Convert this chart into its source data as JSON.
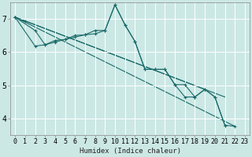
{
  "xlabel": "Humidex (Indice chaleur)",
  "bg_color": "#cce8e5",
  "grid_color": "#ffffff",
  "line_color": "#1a6b6a",
  "xlim": [
    -0.5,
    23.5
  ],
  "ylim": [
    3.5,
    7.5
  ],
  "yticks": [
    4,
    5,
    6,
    7
  ],
  "xticks": [
    0,
    1,
    2,
    3,
    4,
    5,
    6,
    7,
    8,
    9,
    10,
    11,
    12,
    13,
    14,
    15,
    16,
    17,
    18,
    19,
    20,
    21,
    22,
    23
  ],
  "series": [
    {
      "x": [
        0,
        1
      ],
      "y": [
        7.05,
        6.92
      ],
      "markers": true
    },
    {
      "x": [
        0,
        2,
        3,
        4,
        5,
        6,
        7,
        8,
        9,
        10,
        11,
        12,
        13,
        14,
        15,
        16,
        17,
        18,
        19,
        20,
        21,
        22
      ],
      "y": [
        7.05,
        6.65,
        6.22,
        6.35,
        6.38,
        6.5,
        6.52,
        6.65,
        6.65,
        7.42,
        6.82,
        6.32,
        5.48,
        5.48,
        5.48,
        5.02,
        5.02,
        4.65,
        4.88,
        4.65,
        3.8,
        3.77
      ],
      "markers": true
    },
    {
      "x": [
        0,
        2,
        3,
        4,
        5,
        6,
        7,
        8,
        9,
        10,
        11,
        12,
        13,
        14,
        15,
        16,
        17,
        18,
        19,
        20,
        21
      ],
      "y": [
        7.05,
        6.18,
        6.22,
        6.3,
        6.38,
        6.45,
        6.52,
        6.55,
        6.65,
        7.42,
        6.82,
        6.32,
        5.48,
        5.48,
        5.48,
        5.02,
        4.65,
        4.65,
        4.88,
        4.65,
        3.8
      ],
      "markers": true
    },
    {
      "x": [
        0,
        22
      ],
      "y": [
        7.05,
        3.77
      ],
      "markers": false
    },
    {
      "x": [
        0,
        21
      ],
      "y": [
        7.05,
        4.65
      ],
      "markers": false
    },
    {
      "x": [
        0,
        19
      ],
      "y": [
        7.05,
        4.88
      ],
      "markers": false
    }
  ]
}
